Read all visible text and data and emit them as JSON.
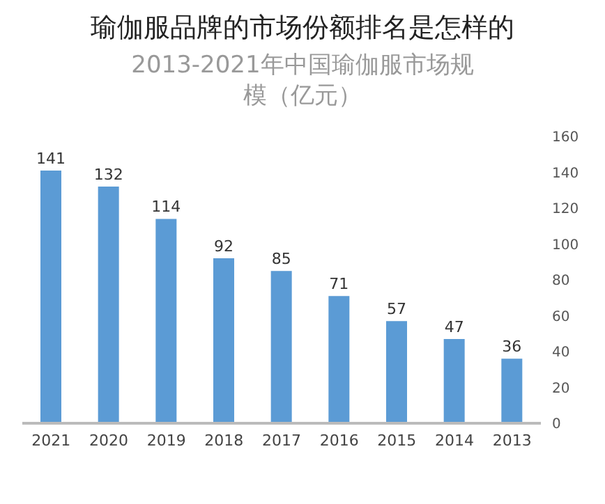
{
  "chart_data": {
    "type": "bar",
    "title": "瑜伽服品牌的市场份额排名是怎样的",
    "subtitle": "2013-2021年中国瑜伽服市场规模（亿元）",
    "categories": [
      "2021",
      "2020",
      "2019",
      "2018",
      "2017",
      "2016",
      "2015",
      "2014",
      "2013"
    ],
    "values": [
      141,
      132,
      114,
      92,
      85,
      71,
      57,
      47,
      36
    ],
    "color": "#5b9bd5",
    "ylim": [
      0,
      160
    ],
    "yticks": [
      0,
      20,
      40,
      60,
      80,
      100,
      120,
      140,
      160
    ],
    "data_labels": true
  }
}
